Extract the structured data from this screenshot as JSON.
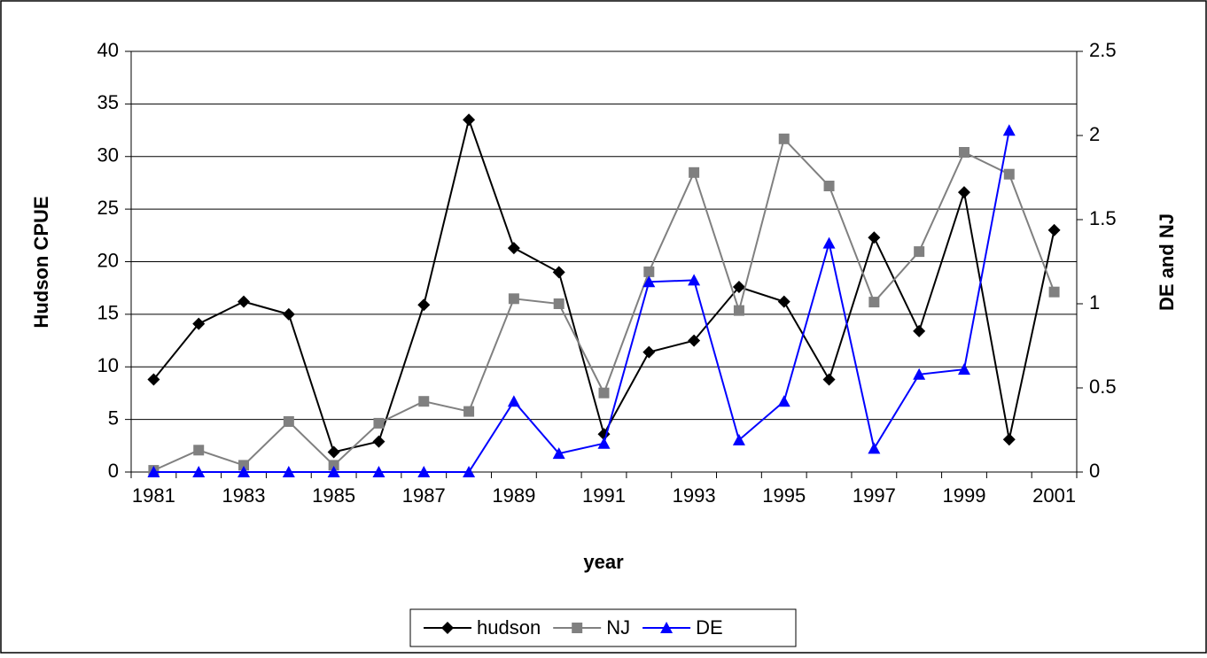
{
  "chart_data": {
    "type": "line",
    "x_label": "year",
    "y_label": "Hudson CPUE",
    "y2_label": "DE and NJ",
    "categories": [
      "1981",
      null,
      "1983",
      null,
      "1985",
      null,
      "1987",
      null,
      "1989",
      null,
      "1991",
      null,
      "1993",
      null,
      "1995",
      null,
      "1997",
      null,
      "1999",
      null,
      "2001"
    ],
    "ylim": [
      0,
      40
    ],
    "yticks": [
      0,
      5,
      10,
      15,
      20,
      25,
      30,
      35,
      40
    ],
    "y2lim": [
      0,
      2.5
    ],
    "y2ticks": [
      0,
      0.5,
      1,
      1.5,
      2,
      2.5
    ],
    "grid": true,
    "legend": "bottom",
    "series": [
      {
        "name": "hudson",
        "color": "#000000",
        "marker": "diamond",
        "values": [
          8.8,
          14.1,
          16.2,
          15.0,
          1.9,
          2.9,
          15.9,
          33.5,
          21.3,
          19.0,
          3.6,
          11.4,
          12.5,
          17.6,
          16.2,
          8.8,
          22.3,
          13.4,
          26.6,
          3.1,
          23.0
        ]
      },
      {
        "name": "NJ",
        "color": "#808080",
        "marker": "square",
        "axis": "y2",
        "values": [
          0.01,
          0.13,
          0.04,
          0.3,
          0.04,
          0.29,
          0.42,
          0.36,
          1.03,
          1.0,
          0.47,
          1.19,
          1.78,
          0.96,
          1.98,
          1.7,
          1.01,
          1.31,
          1.9,
          1.77,
          1.07
        ]
      },
      {
        "name": "DE",
        "color": "#0000ff",
        "marker": "triangle",
        "axis": "y2",
        "values": [
          0,
          0,
          0,
          0,
          0,
          0,
          0,
          0,
          0.42,
          0.11,
          0.17,
          1.13,
          1.14,
          0.19,
          0.42,
          1.36,
          0.14,
          0.58,
          0.61,
          2.03,
          null
        ]
      }
    ]
  }
}
